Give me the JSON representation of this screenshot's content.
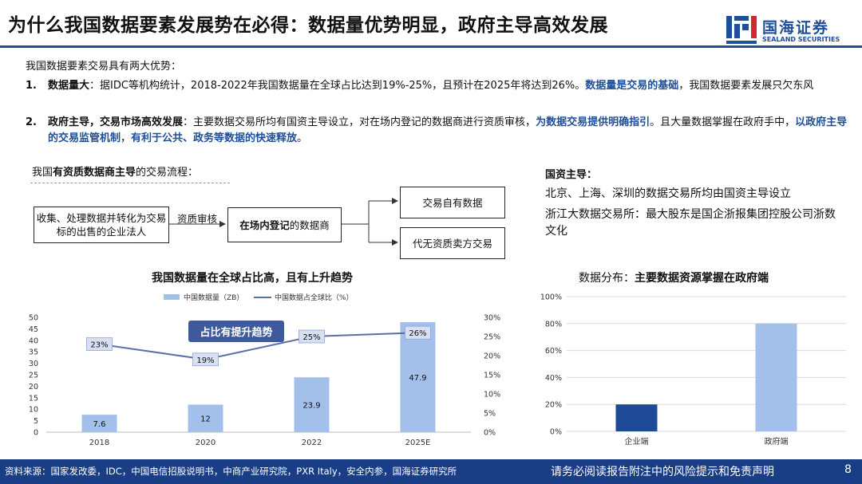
{
  "header": {
    "title": "为什么我国数据要素发展势在必得：数据量优势明显，政府主导高效发展",
    "logo_cn": "国海证券",
    "logo_en": "SEALAND SECURITIES"
  },
  "intro": "我国数据要素交易具有两大优势：",
  "points": [
    {
      "num": "1.",
      "lead": "数据量大",
      "text1": "：据IDC等机构统计，2018-2022年我国数据量在全球占比达到19%-25%，且预计在2025年将达到26%。",
      "hl1": "数据量是交易的基础",
      "text2": "，我国数据要素发展只欠东风"
    },
    {
      "num": "2.",
      "lead": "政府主导",
      "sep": "，",
      "lead2": "交易市场高效发展",
      "text1": "：主要数据交易所均有国资主导设立，对在场内登记的数据商进行资质审核，",
      "hl1": "为数据交易提供明确指引",
      "text2": "。且大量数据掌握在政府手中，",
      "hl2": "以政府主导的交易监管机制",
      "text3": "，",
      "hl3": "有利于公共、政务等数据的快速释放",
      "text4": "。"
    }
  ],
  "flow": {
    "title_pre": "我国",
    "title_bold": "有资质数据商主导",
    "title_post": "的交易流程：",
    "source": "收集、处理数据并转化为交易标的出售的企业法人",
    "arrow_label": "资质审核",
    "mid_bold": "在场内登记",
    "mid_post": "的数据商",
    "out1": "交易自有数据",
    "out2": "代无资质卖方交易"
  },
  "gov": {
    "head": "国资主导：",
    "line1": "北京、上海、深圳的数据交易所均由国资主导设立",
    "line2": "浙江大数据交易所：最大股东是国企浙报集团控股公司浙数文化"
  },
  "footer": {
    "source": "资料来源：国家发改委，IDC，中国电信招股说明书，中商产业研究院，PXR Italy，安全内参，国海证券研究所",
    "disclaimer": "请务必阅读报告附注中的风险提示和免责声明",
    "page": "8"
  },
  "chart_data": [
    {
      "type": "bar",
      "title_pre": "我国",
      "title_bold": "数据量在全球占比高，且有上升趋势",
      "callout": "占比有提升趋势",
      "categories": [
        "2018",
        "2020",
        "2022",
        "2025E"
      ],
      "series": [
        {
          "name": "中国数据量（ZB）",
          "type": "bar",
          "axis": "left",
          "values": [
            7.6,
            12,
            23.9,
            47.9
          ],
          "color": "#a3c0ea"
        },
        {
          "name": "中国数据占全球比（%）",
          "type": "line",
          "axis": "right",
          "values": [
            23,
            19,
            25,
            26
          ],
          "labels": [
            "23%",
            "19%",
            "25%",
            "26%"
          ],
          "color": "#5a6fa8"
        }
      ],
      "ylim": [
        0,
        50
      ],
      "yticks": [
        "0",
        "5",
        "10",
        "15",
        "20",
        "25",
        "30",
        "35",
        "40",
        "45",
        "50"
      ],
      "y2lim": [
        0,
        30
      ],
      "y2ticks": [
        "0%",
        "5%",
        "10%",
        "15%",
        "20%",
        "25%",
        "30%"
      ],
      "grid": false,
      "legend": "top"
    },
    {
      "type": "bar",
      "title_pre": "数据分布：",
      "title_bold": "主要数据资源掌握在政府端",
      "categories": [
        "企业端",
        "政府端"
      ],
      "values": [
        20,
        80
      ],
      "colors": [
        "#1f4a96",
        "#a3c0ea"
      ],
      "ylim": [
        0,
        100
      ],
      "yticks": [
        "0%",
        "20%",
        "40%",
        "60%",
        "80%",
        "100%"
      ],
      "grid": true
    }
  ]
}
